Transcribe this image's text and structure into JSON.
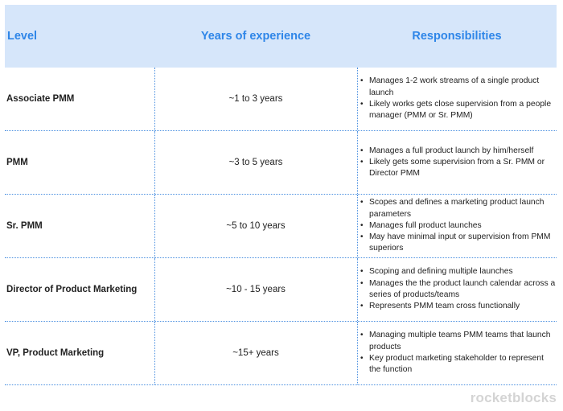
{
  "header": {
    "level": "Level",
    "years": "Years of experience",
    "responsibilities": "Responsibilities"
  },
  "rows": [
    {
      "level": "Associate PMM",
      "years": "~1 to 3 years",
      "responsibilities": [
        "Manages 1-2 work streams of a single product launch",
        "Likely works gets close supervision from a people manager (PMM or Sr. PMM)"
      ]
    },
    {
      "level": "PMM",
      "years": "~3 to 5 years",
      "responsibilities": [
        "Manages a full product launch by him/herself",
        "Likely gets some supervision from a Sr. PMM or Director PMM"
      ]
    },
    {
      "level": "Sr. PMM",
      "years": "~5 to 10 years",
      "responsibilities": [
        "Scopes and defines a marketing product launch parameters",
        "Manages full product launches",
        "May have minimal input or supervision from PMM superiors"
      ]
    },
    {
      "level": "Director of Product Marketing",
      "years": "~10 - 15 years",
      "responsibilities": [
        "Scoping and defining multiple launches",
        "Manages the the product launch calendar across a series of products/teams",
        "Represents PMM team cross functionally"
      ]
    },
    {
      "level": "VP, Product Marketing",
      "years": "~15+ years",
      "responsibilities": [
        "Managing multiple teams PMM teams that launch products",
        "Key product marketing stakeholder to represent the function"
      ]
    }
  ],
  "watermark": "rocketblocks",
  "colors": {
    "header_bg": "#d6e6fa",
    "header_text": "#2f86e8",
    "divider": "#4a8fe0",
    "watermark": "#d4d4d4"
  }
}
